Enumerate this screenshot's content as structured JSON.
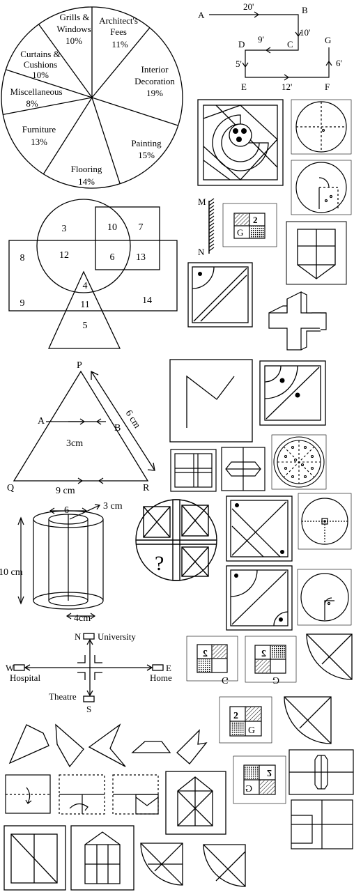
{
  "pie": {
    "slices": [
      {
        "label": "Architect's",
        "label2": "Fees",
        "value_text": "11%",
        "value": 11
      },
      {
        "label": "Interior",
        "label2": "Decoration",
        "value_text": "19%",
        "value": 19
      },
      {
        "label": "Painting",
        "label2": "",
        "value_text": "15%",
        "value": 15
      },
      {
        "label": "Flooring",
        "label2": "",
        "value_text": "14%",
        "value": 14
      },
      {
        "label": "Furniture",
        "label2": "",
        "value_text": "13%",
        "value": 13
      },
      {
        "label": "Miscellaneous",
        "label2": "",
        "value_text": "8%",
        "value": 8
      },
      {
        "label": "Curtains &",
        "label2": "Cushions",
        "value_text": "10%",
        "value": 10
      },
      {
        "label": "Grills &",
        "label2": "Windows",
        "value_text": "10%",
        "value": 10
      }
    ]
  },
  "path": {
    "points": {
      "A": "A",
      "B": "B",
      "C": "C",
      "D": "D",
      "E": "E",
      "F": "F",
      "G": "G"
    },
    "distances": {
      "AB": "20'",
      "BC": "10'",
      "CD": "9'",
      "DE": "5'",
      "EF": "12'",
      "FG": "6'"
    }
  },
  "venn": {
    "numbers": [
      "3",
      "10",
      "7",
      "8",
      "12",
      "6",
      "13",
      "4",
      "9",
      "11",
      "14",
      "5"
    ]
  },
  "mirror": {
    "top": "M",
    "bottom": "N",
    "card_digit": "2",
    "card_letter": "G"
  },
  "triangle": {
    "P": "P",
    "A": "A",
    "B": "B",
    "Q": "Q",
    "R": "R",
    "ab": "3cm",
    "qr": "9 cm",
    "pr": "6 cm"
  },
  "cylinder": {
    "height": "10 cm",
    "top_width": "6",
    "radius": "3 cm",
    "bottom_width": "4cm"
  },
  "question_mark": "?",
  "map": {
    "n": "N",
    "university": "University",
    "w": "W",
    "hospital": "Hospital",
    "e": "E",
    "home": "Home",
    "theatre": "Theatre",
    "s": "S"
  },
  "cards": {
    "digit": "2",
    "letter": "G",
    "mirrored_digit": "2",
    "mirrored_letter": "G"
  }
}
